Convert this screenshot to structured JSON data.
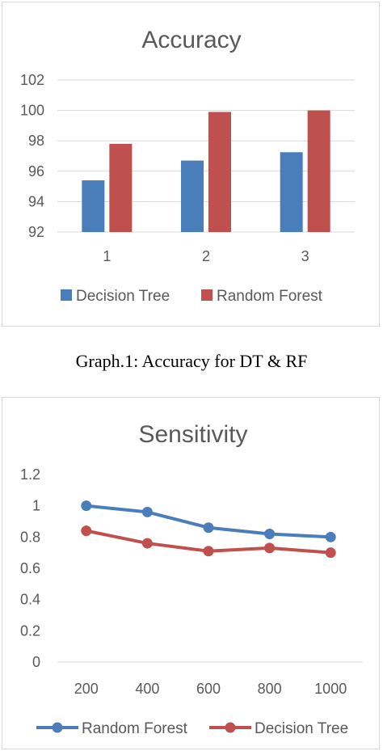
{
  "caption": "Graph.1: Accuracy for DT & RF",
  "colors": {
    "blue": "#4a7ebb",
    "red": "#c0504d",
    "grid": "#d9d9d9",
    "text": "#595959"
  },
  "chart_data": [
    {
      "type": "bar",
      "title": "Accuracy",
      "categories": [
        "1",
        "2",
        "3"
      ],
      "series": [
        {
          "name": "Decision Tree",
          "values": [
            95.4,
            96.7,
            97.25
          ]
        },
        {
          "name": "Random Forest",
          "values": [
            97.8,
            99.9,
            100
          ]
        }
      ],
      "ylim": [
        92,
        102
      ],
      "yticks": [
        92,
        94,
        96,
        98,
        100,
        102
      ],
      "grid": true,
      "legend": "bottom"
    },
    {
      "type": "line",
      "title": "Sensitivity",
      "x": [
        "200",
        "400",
        "600",
        "800",
        "1000"
      ],
      "series": [
        {
          "name": "Random Forest",
          "values": [
            1.0,
            0.96,
            0.86,
            0.82,
            0.8
          ]
        },
        {
          "name": "Decision Tree",
          "values": [
            0.84,
            0.76,
            0.71,
            0.73,
            0.7
          ]
        }
      ],
      "ylim": [
        0,
        1.2
      ],
      "yticks": [
        "0",
        "0.2",
        "0.4",
        "0.6",
        "0.8",
        "1",
        "1.2"
      ],
      "grid": false,
      "legend": "bottom"
    }
  ]
}
